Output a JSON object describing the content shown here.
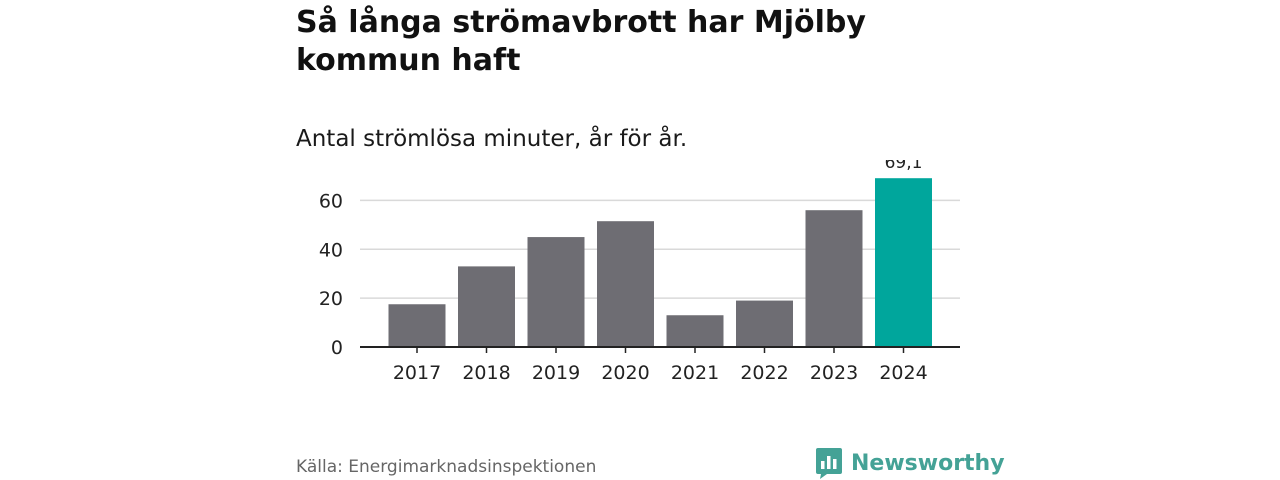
{
  "header": {
    "title": "Så långa strömavbrott har Mjölby kommun haft",
    "subtitle": "Antal strömlösa minuter, år för år."
  },
  "footer": {
    "source": "Källa: Energimarknadsinspektionen",
    "brand": "Newsworthy"
  },
  "colors": {
    "bar": "#6e6d73",
    "highlight": "#00a69c",
    "grid": "#d9d9d9",
    "axis": "#222222",
    "brand": "#44a296"
  },
  "chart_data": {
    "type": "bar",
    "title": "Så långa strömavbrott har Mjölby kommun haft",
    "subtitle": "Antal strömlösa minuter, år för år.",
    "xlabel": "",
    "ylabel": "",
    "categories": [
      "2017",
      "2018",
      "2019",
      "2020",
      "2021",
      "2022",
      "2023",
      "2024"
    ],
    "values": [
      17.5,
      33,
      45,
      51.5,
      13,
      19,
      56,
      69.1
    ],
    "highlight_index": 7,
    "highlight_label": "69,1",
    "yticks": [
      0,
      20,
      40,
      60
    ],
    "ylim": [
      0,
      70
    ],
    "grid": true
  }
}
